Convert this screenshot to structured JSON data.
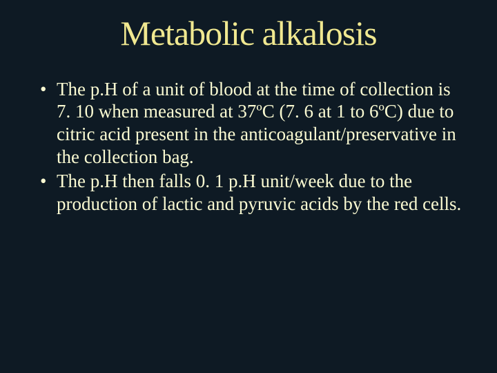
{
  "background_color": "#0e1a24",
  "text_color": "#fafad2",
  "title": {
    "text": "Metabolic alkalosis",
    "color": "#f0e890",
    "font_family": "cursive",
    "font_size_pt": 40
  },
  "body": {
    "font_family": "Times New Roman",
    "font_size_pt": 21,
    "color": "#fafad2",
    "bullets": [
      "The p.H of a unit of blood at the time of collection is 7. 10 when measured at 37ºC (7. 6 at 1 to 6ºC) due to citric acid present in the anticoagulant/preservative in the collection bag.",
      "The p.H then falls 0. 1 p.H unit/week due to the production of lactic and pyruvic acids by the red cells."
    ]
  }
}
